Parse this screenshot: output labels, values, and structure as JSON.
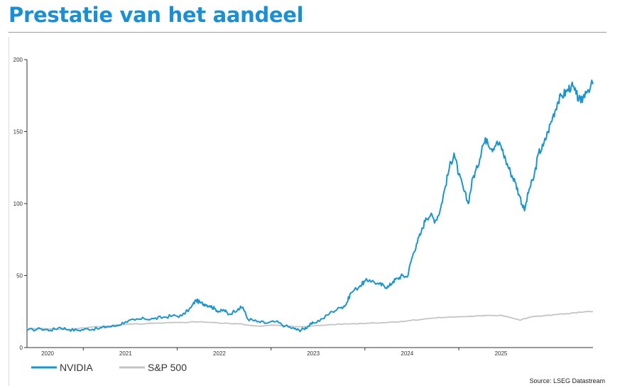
{
  "title": "Prestatie van het aandeel",
  "source": "Source: LSEG Datastream",
  "colors": {
    "title": "#1b8fd6",
    "nvidia": "#1b95cf",
    "sp500": "#c4c4c4",
    "axis": "#333333"
  },
  "chart_data": {
    "type": "line",
    "title": "",
    "xlabel": "",
    "ylabel": "",
    "ylim": [
      0,
      200
    ],
    "xlim": [
      2019.95,
      2025.98
    ],
    "yticks": [
      0,
      50,
      100,
      150,
      200
    ],
    "xticks": [
      {
        "label": "2020",
        "at": 2020.17
      },
      {
        "label": "2021",
        "at": 2021.0
      },
      {
        "label": "2022",
        "at": 2022.0
      },
      {
        "label": "2023",
        "at": 2023.0
      },
      {
        "label": "2024",
        "at": 2024.0
      },
      {
        "label": "2025",
        "at": 2025.0
      }
    ],
    "grid": false,
    "legend": "bottom-left",
    "series": [
      {
        "name": "NVIDIA",
        "color": "#1b95cf",
        "points": [
          [
            2019.95,
            12
          ],
          [
            2020.1,
            13
          ],
          [
            2020.2,
            12
          ],
          [
            2020.3,
            14
          ],
          [
            2020.4,
            12.5
          ],
          [
            2020.5,
            12
          ],
          [
            2020.6,
            13
          ],
          [
            2020.7,
            13
          ],
          [
            2020.8,
            14.5
          ],
          [
            2020.9,
            15
          ],
          [
            2021.0,
            18
          ],
          [
            2021.1,
            19
          ],
          [
            2021.2,
            20
          ],
          [
            2021.3,
            20
          ],
          [
            2021.4,
            21
          ],
          [
            2021.5,
            22
          ],
          [
            2021.6,
            22
          ],
          [
            2021.7,
            28
          ],
          [
            2021.75,
            33
          ],
          [
            2021.8,
            31
          ],
          [
            2021.85,
            30
          ],
          [
            2021.9,
            29
          ],
          [
            2021.95,
            27
          ],
          [
            2022.0,
            25
          ],
          [
            2022.05,
            26
          ],
          [
            2022.1,
            23
          ],
          [
            2022.2,
            27
          ],
          [
            2022.25,
            28
          ],
          [
            2022.3,
            20
          ],
          [
            2022.4,
            18
          ],
          [
            2022.5,
            17
          ],
          [
            2022.6,
            18
          ],
          [
            2022.7,
            15
          ],
          [
            2022.8,
            13
          ],
          [
            2022.85,
            12
          ],
          [
            2022.9,
            13
          ],
          [
            2022.95,
            15
          ],
          [
            2023.0,
            17
          ],
          [
            2023.1,
            20
          ],
          [
            2023.2,
            25
          ],
          [
            2023.3,
            28
          ],
          [
            2023.35,
            30
          ],
          [
            2023.4,
            38
          ],
          [
            2023.5,
            43
          ],
          [
            2023.55,
            46
          ],
          [
            2023.6,
            47
          ],
          [
            2023.7,
            44
          ],
          [
            2023.75,
            43
          ],
          [
            2023.8,
            42
          ],
          [
            2023.85,
            46
          ],
          [
            2023.9,
            48
          ],
          [
            2023.95,
            50
          ],
          [
            2024.0,
            49
          ],
          [
            2024.05,
            62
          ],
          [
            2024.1,
            72
          ],
          [
            2024.15,
            80
          ],
          [
            2024.2,
            90
          ],
          [
            2024.25,
            92
          ],
          [
            2024.3,
            88
          ],
          [
            2024.35,
            95
          ],
          [
            2024.4,
            110
          ],
          [
            2024.45,
            125
          ],
          [
            2024.5,
            135
          ],
          [
            2024.55,
            120
          ],
          [
            2024.6,
            110
          ],
          [
            2024.65,
            100
          ],
          [
            2024.7,
            118
          ],
          [
            2024.75,
            125
          ],
          [
            2024.8,
            140
          ],
          [
            2024.85,
            145
          ],
          [
            2024.9,
            138
          ],
          [
            2024.95,
            142
          ],
          [
            2025.0,
            140
          ],
          [
            2025.05,
            130
          ],
          [
            2025.1,
            122
          ],
          [
            2025.15,
            115
          ],
          [
            2025.2,
            105
          ],
          [
            2025.25,
            95
          ],
          [
            2025.3,
            110
          ],
          [
            2025.35,
            118
          ],
          [
            2025.4,
            135
          ],
          [
            2025.45,
            140
          ],
          [
            2025.5,
            150
          ],
          [
            2025.55,
            160
          ],
          [
            2025.6,
            170
          ],
          [
            2025.65,
            175
          ],
          [
            2025.7,
            178
          ],
          [
            2025.75,
            182
          ],
          [
            2025.8,
            176
          ],
          [
            2025.85,
            170
          ],
          [
            2025.9,
            178
          ],
          [
            2025.98,
            183
          ]
        ]
      },
      {
        "name": "S&P 500",
        "color": "#c4c4c4",
        "points": [
          [
            2019.95,
            13
          ],
          [
            2020.2,
            13
          ],
          [
            2020.4,
            12.5
          ],
          [
            2020.6,
            14
          ],
          [
            2020.8,
            15
          ],
          [
            2021.0,
            16
          ],
          [
            2021.2,
            16.5
          ],
          [
            2021.4,
            17
          ],
          [
            2021.6,
            17.5
          ],
          [
            2021.8,
            18
          ],
          [
            2022.0,
            17
          ],
          [
            2022.2,
            16.5
          ],
          [
            2022.4,
            15
          ],
          [
            2022.6,
            15.5
          ],
          [
            2022.8,
            14.5
          ],
          [
            2023.0,
            15
          ],
          [
            2023.2,
            16
          ],
          [
            2023.4,
            16.5
          ],
          [
            2023.6,
            17
          ],
          [
            2023.8,
            17.5
          ],
          [
            2024.0,
            18.5
          ],
          [
            2024.2,
            20
          ],
          [
            2024.4,
            21
          ],
          [
            2024.6,
            21.5
          ],
          [
            2024.8,
            22
          ],
          [
            2025.0,
            22.5
          ],
          [
            2025.1,
            21
          ],
          [
            2025.2,
            19
          ],
          [
            2025.3,
            21
          ],
          [
            2025.5,
            22.5
          ],
          [
            2025.7,
            23.5
          ],
          [
            2025.85,
            24.5
          ],
          [
            2025.98,
            25
          ]
        ]
      }
    ]
  }
}
